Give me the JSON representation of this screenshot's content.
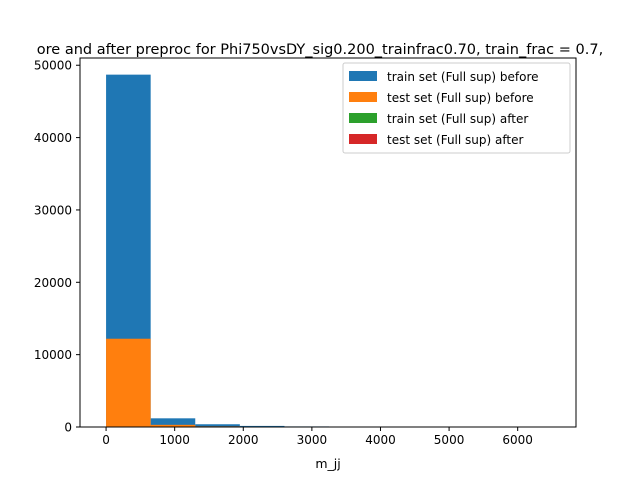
{
  "chart_data": {
    "type": "bar",
    "title": "ore and after preproc for Phi750vsDY_sig0.200_trainfrac0.70, train_frac = 0.7,",
    "xlabel": "m_jj",
    "ylabel": "",
    "xlim": [
      -380,
      6850
    ],
    "ylim": [
      0,
      51000
    ],
    "xticks": [
      0,
      1000,
      2000,
      3000,
      4000,
      5000,
      6000
    ],
    "yticks": [
      0,
      10000,
      20000,
      30000,
      40000,
      50000
    ],
    "bin_edges": [
      0,
      650,
      1300,
      1950,
      2600,
      3250,
      3900,
      4550,
      5200,
      5850,
      6500
    ],
    "legend_position": "top-right",
    "series": [
      {
        "name": "train set (Full sup) before",
        "color": "#1f77b4",
        "values": [
          48700,
          1200,
          380,
          150,
          80,
          30,
          15,
          8,
          4,
          2
        ]
      },
      {
        "name": "test set (Full sup) before",
        "color": "#ff7f0e",
        "values": [
          12200,
          300,
          95,
          38,
          20,
          8,
          4,
          2,
          1,
          0
        ]
      },
      {
        "name": "train set (Full sup) after",
        "color": "#2ca02c",
        "values": [
          0,
          0,
          0,
          0,
          0,
          0,
          0,
          0,
          0,
          0
        ]
      },
      {
        "name": "test set (Full sup) after",
        "color": "#d62728",
        "values": [
          0,
          0,
          0,
          0,
          0,
          0,
          0,
          0,
          0,
          0
        ]
      }
    ]
  }
}
